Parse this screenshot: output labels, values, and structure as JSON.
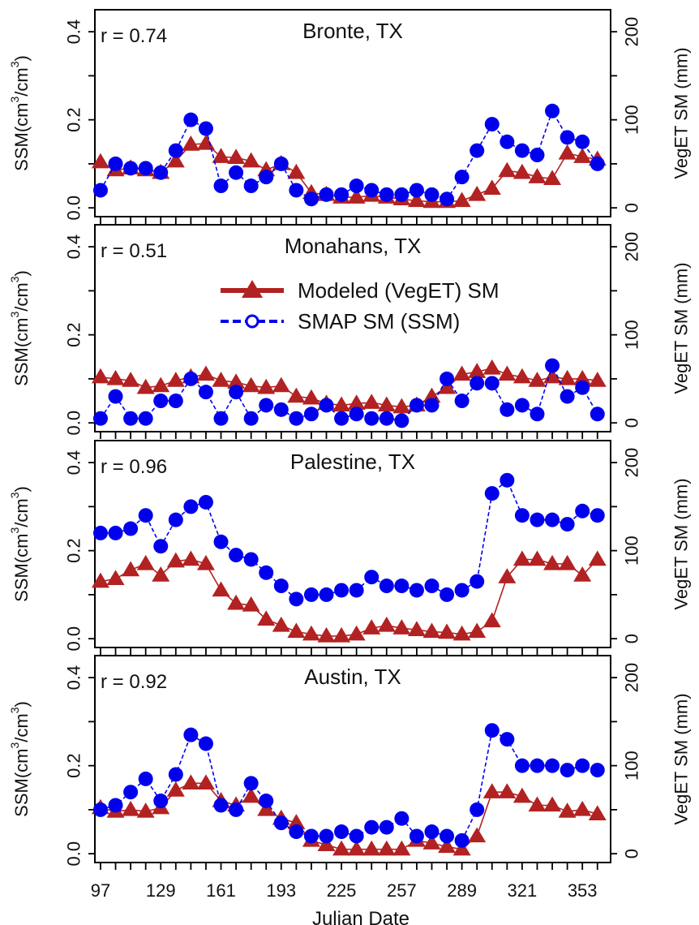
{
  "chart_data": [
    {
      "type": "scatter",
      "title": "Bronte, TX",
      "annotation": "r = 0.74",
      "xlabel": "Julian Date",
      "ylabel_left": "SSM(cm³/cm³)",
      "ylabel_right": "VegET SM (mm)",
      "xlim": [
        94,
        368
      ],
      "ylim_left": [
        -0.02,
        0.45
      ],
      "ylim_right": [
        -10,
        225
      ],
      "x": [
        97,
        105,
        113,
        121,
        129,
        137,
        145,
        153,
        161,
        169,
        177,
        185,
        193,
        201,
        209,
        217,
        225,
        233,
        241,
        249,
        257,
        265,
        273,
        281,
        289,
        297,
        305,
        313,
        321,
        329,
        337,
        345,
        353,
        361
      ],
      "series": [
        {
          "name": "Modeled (VegET) SM",
          "axis": "right",
          "color": "#b22222",
          "marker": "triangle",
          "values": [
            52,
            43,
            45,
            43,
            40,
            53,
            72,
            73,
            58,
            57,
            53,
            43,
            50,
            40,
            17,
            15,
            12,
            12,
            14,
            12,
            10,
            8,
            7,
            7,
            8,
            15,
            22,
            42,
            40,
            35,
            33,
            62,
            58,
            55
          ]
        },
        {
          "name": "SMAP SM (SSM)",
          "axis": "left",
          "color": "#0000ee",
          "marker": "circle",
          "values": [
            0.04,
            0.1,
            0.09,
            0.09,
            0.08,
            0.13,
            0.2,
            0.18,
            0.05,
            0.08,
            0.05,
            0.07,
            0.1,
            0.04,
            0.02,
            0.03,
            0.03,
            0.05,
            0.04,
            0.03,
            0.03,
            0.04,
            0.03,
            0.02,
            0.07,
            0.13,
            0.19,
            0.15,
            0.13,
            0.12,
            0.22,
            0.16,
            0.15,
            0.1
          ]
        }
      ]
    },
    {
      "type": "scatter",
      "title": "Monahans, TX",
      "annotation": "r = 0.51",
      "xlabel": "Julian Date",
      "ylabel_left": "SSM(cm³/cm³)",
      "ylabel_right": "VegET SM (mm)",
      "xlim": [
        94,
        368
      ],
      "ylim_left": [
        -0.02,
        0.45
      ],
      "ylim_right": [
        -10,
        225
      ],
      "legend": {
        "placement": "top-center",
        "entries": [
          "Modeled (VegET) SM",
          "SMAP SM (SSM)"
        ]
      },
      "x": [
        97,
        105,
        113,
        121,
        129,
        137,
        145,
        153,
        161,
        169,
        177,
        185,
        193,
        201,
        209,
        217,
        225,
        233,
        241,
        249,
        257,
        265,
        273,
        281,
        289,
        297,
        305,
        313,
        321,
        329,
        337,
        345,
        353,
        361
      ],
      "series": [
        {
          "name": "Modeled (VegET) SM",
          "axis": "right",
          "color": "#b22222",
          "marker": "triangle",
          "values": [
            52,
            50,
            48,
            40,
            42,
            48,
            52,
            55,
            48,
            46,
            42,
            40,
            42,
            30,
            28,
            22,
            20,
            22,
            23,
            20,
            18,
            20,
            30,
            40,
            55,
            58,
            62,
            55,
            52,
            48,
            52,
            50,
            50,
            48
          ]
        },
        {
          "name": "SMAP SM (SSM)",
          "axis": "left",
          "color": "#0000ee",
          "marker": "circle",
          "values": [
            0.01,
            0.06,
            0.01,
            0.01,
            0.05,
            0.05,
            0.1,
            0.07,
            0.01,
            0.07,
            0.01,
            0.04,
            0.03,
            0.01,
            0.02,
            0.04,
            0.01,
            0.02,
            0.01,
            0.01,
            0.005,
            0.04,
            0.04,
            0.1,
            0.05,
            0.09,
            0.09,
            0.03,
            0.04,
            0.02,
            0.13,
            0.06,
            0.08,
            0.02
          ]
        }
      ]
    },
    {
      "type": "scatter",
      "title": "Palestine, TX",
      "annotation": "r = 0.96",
      "xlabel": "Julian Date",
      "ylabel_left": "SSM(cm³/cm³)",
      "ylabel_right": "VegET SM (mm)",
      "xlim": [
        94,
        368
      ],
      "ylim_left": [
        -0.02,
        0.45
      ],
      "ylim_right": [
        -10,
        225
      ],
      "x": [
        97,
        105,
        113,
        121,
        129,
        137,
        145,
        153,
        161,
        169,
        177,
        185,
        193,
        201,
        209,
        217,
        225,
        233,
        241,
        249,
        257,
        265,
        273,
        281,
        289,
        297,
        305,
        313,
        321,
        329,
        337,
        345,
        353,
        361
      ],
      "series": [
        {
          "name": "Modeled (VegET) SM",
          "axis": "right",
          "color": "#b22222",
          "marker": "triangle",
          "values": [
            65,
            68,
            78,
            85,
            72,
            88,
            90,
            85,
            55,
            40,
            38,
            22,
            15,
            8,
            5,
            3,
            3,
            5,
            12,
            15,
            12,
            10,
            8,
            7,
            5,
            8,
            20,
            70,
            90,
            90,
            85,
            85,
            72,
            90
          ]
        },
        {
          "name": "SMAP SM (SSM)",
          "axis": "left",
          "color": "#0000ee",
          "marker": "circle",
          "values": [
            0.24,
            0.24,
            0.25,
            0.28,
            0.21,
            0.27,
            0.3,
            0.31,
            0.22,
            0.19,
            0.18,
            0.15,
            0.12,
            0.09,
            0.1,
            0.1,
            0.11,
            0.11,
            0.14,
            0.12,
            0.12,
            0.11,
            0.12,
            0.1,
            0.11,
            0.13,
            0.33,
            0.36,
            0.28,
            0.27,
            0.27,
            0.26,
            0.29,
            0.28
          ]
        }
      ]
    },
    {
      "type": "scatter",
      "title": "Austin, TX",
      "annotation": "r = 0.92",
      "xlabel": "Julian Date",
      "ylabel_left": "SSM(cm³/cm³)",
      "ylabel_right": "VegET SM (mm)",
      "xlim": [
        94,
        368
      ],
      "ylim_left": [
        -0.02,
        0.45
      ],
      "ylim_right": [
        -10,
        225
      ],
      "x": [
        97,
        105,
        113,
        121,
        129,
        137,
        145,
        153,
        161,
        169,
        177,
        185,
        193,
        201,
        209,
        217,
        225,
        233,
        241,
        249,
        257,
        265,
        273,
        281,
        289,
        297,
        305,
        313,
        321,
        329,
        337,
        345,
        353,
        361
      ],
      "x_ticks": [
        97,
        129,
        161,
        193,
        225,
        257,
        289,
        321,
        353
      ],
      "series": [
        {
          "name": "Modeled (VegET) SM",
          "axis": "right",
          "color": "#b22222",
          "marker": "triangle",
          "values": [
            52,
            48,
            50,
            48,
            52,
            72,
            80,
            80,
            60,
            55,
            65,
            50,
            40,
            35,
            15,
            10,
            5,
            5,
            5,
            5,
            5,
            15,
            12,
            8,
            5,
            20,
            70,
            70,
            65,
            55,
            55,
            48,
            50,
            45
          ]
        },
        {
          "name": "SMAP SM (SSM)",
          "axis": "left",
          "color": "#0000ee",
          "marker": "circle",
          "values": [
            0.1,
            0.11,
            0.14,
            0.17,
            0.12,
            0.18,
            0.27,
            0.25,
            0.11,
            0.1,
            0.16,
            0.12,
            0.07,
            0.05,
            0.04,
            0.04,
            0.05,
            0.04,
            0.06,
            0.06,
            0.08,
            0.04,
            0.05,
            0.04,
            0.03,
            0.1,
            0.28,
            0.26,
            0.2,
            0.2,
            0.2,
            0.19,
            0.2,
            0.19
          ]
        }
      ]
    }
  ],
  "axis_labels": {
    "left_prefix": "SSM(cm",
    "left_sup1": "3",
    "left_mid": "/cm",
    "left_sup2": "3",
    "left_suffix": ")",
    "right": "VegET SM (mm)",
    "bottom": "Julian Date"
  },
  "left_ticks": [
    "0.0",
    "0.2",
    "0.4"
  ],
  "right_ticks": [
    "0",
    "100",
    "200"
  ],
  "colors": {
    "modeled": "#b22222",
    "smap": "#0000ee"
  }
}
